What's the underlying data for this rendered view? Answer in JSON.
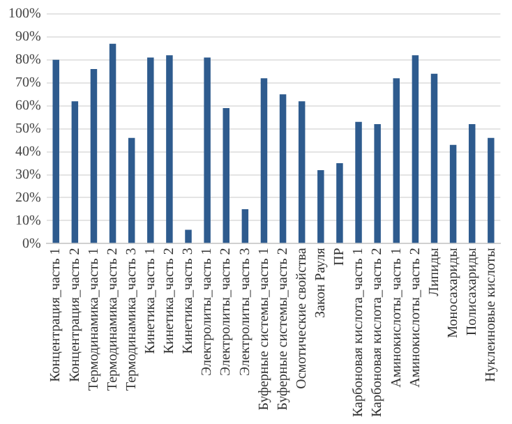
{
  "chart_data": {
    "type": "bar",
    "categories": [
      "Концентрация_часть 1",
      "Концентрация_часть 2",
      "Термодинамика_часть 1",
      "Термодинамика_часть 2",
      "Термодинамика_часть 3",
      "Кинетика_часть 1",
      "Кинетика_часть 2",
      "Кинетика_часть 3",
      "Электролиты_часть 1",
      "Электролиты_часть 2",
      "Электролиты_часть 3",
      "Буферные системы_часть 1",
      "Буферные системы_часть 2",
      "Осмотические свойства",
      "Закон Рауля",
      "ПР",
      "Карбоновая кислота_часть 1",
      "Карбоновая кислота_часть 2",
      "Аминокислоты_часть 1",
      "Аминокислоты_часть 2",
      "Липиды",
      "Моносахариды",
      "Полисахариды",
      "Нуклеиновые кислоты"
    ],
    "values": [
      80,
      62,
      76,
      87,
      46,
      81,
      82,
      6,
      81,
      59,
      15,
      72,
      65,
      62,
      32,
      35,
      53,
      52,
      72,
      82,
      74,
      43,
      52,
      46
    ],
    "color": "#2e5b8e",
    "ylim": [
      0,
      100
    ],
    "yticks": [
      {
        "value": 0,
        "label": "0%"
      },
      {
        "value": 10,
        "label": "10%"
      },
      {
        "value": 20,
        "label": "20%"
      },
      {
        "value": 30,
        "label": "30%"
      },
      {
        "value": 40,
        "label": "40%"
      },
      {
        "value": 50,
        "label": "50%"
      },
      {
        "value": 60,
        "label": "60%"
      },
      {
        "value": 70,
        "label": "70%"
      },
      {
        "value": 80,
        "label": "80%"
      },
      {
        "value": 90,
        "label": "90%"
      },
      {
        "value": 100,
        "label": "100%"
      }
    ],
    "grid": "y",
    "legend": false
  }
}
